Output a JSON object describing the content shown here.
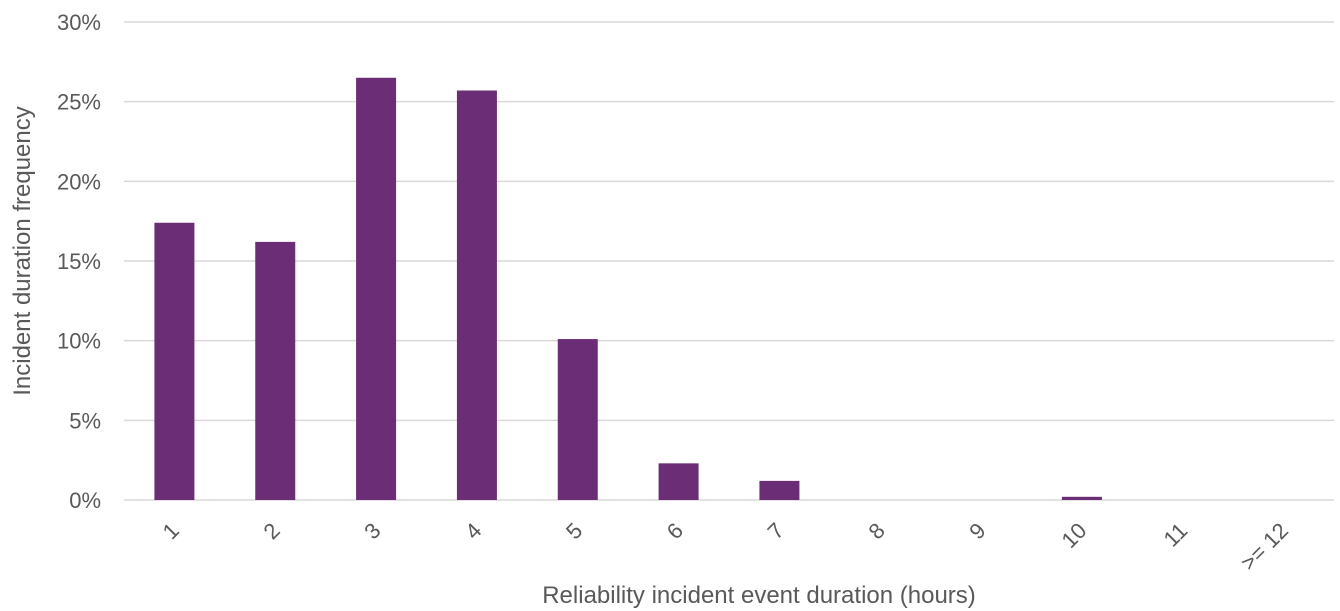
{
  "chart_data": {
    "type": "bar",
    "categories": [
      "1",
      "2",
      "3",
      "4",
      "5",
      "6",
      "7",
      "8",
      "9",
      "10",
      "11",
      ">= 12"
    ],
    "values": [
      17.4,
      16.2,
      26.5,
      25.7,
      10.1,
      2.3,
      1.2,
      0.0,
      0.0,
      0.2,
      0.0,
      0.0
    ],
    "value_unit": "%",
    "title": "",
    "xlabel": "Reliability incident event duration (hours)",
    "ylabel": "Incident duration frequency",
    "ylim": [
      0,
      30
    ],
    "yticks": [
      "0%",
      "5%",
      "10%",
      "15%",
      "20%",
      "25%",
      "30%"
    ],
    "grid": "horizontal",
    "legend": "none",
    "colors": {
      "bar": "#6b2d75",
      "grid": "#d9d9d9",
      "text": "#595959"
    }
  }
}
